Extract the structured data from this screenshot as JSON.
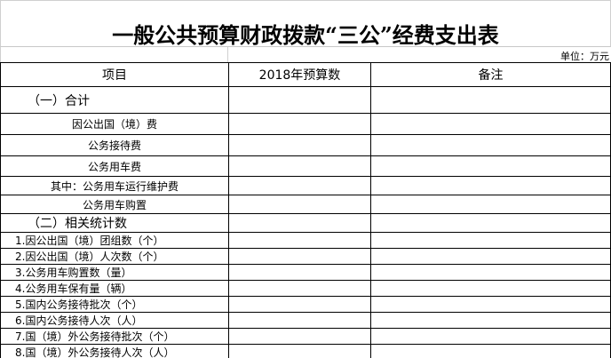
{
  "title": "一般公共预算财政拨款“三公”经费支出表",
  "unit": "单位：万元",
  "headers": [
    "项目",
    "2018年预算数",
    "备注"
  ],
  "rows": [
    {
      "label": "（一）合计",
      "budget": "",
      "note": ""
    },
    {
      "label": "因公出国（境）费",
      "budget": "",
      "note": ""
    },
    {
      "label": "公务接待费",
      "budget": "",
      "note": ""
    },
    {
      "label": "公务用车费",
      "budget": "",
      "note": ""
    },
    {
      "label": "其中：公务用车运行维护费",
      "budget": "",
      "note": ""
    },
    {
      "label": "公务用车购置",
      "budget": "",
      "note": ""
    },
    {
      "label": "（二）相关统计数",
      "budget": "",
      "note": ""
    },
    {
      "label": "1.因公出国（境）团组数（个）",
      "budget": "",
      "note": ""
    },
    {
      "label": "2.因公出国（境）人次数（个）",
      "budget": "",
      "note": ""
    },
    {
      "label": "3.公务用车购置数（量）",
      "budget": "",
      "note": ""
    },
    {
      "label": "4.公务用车保有量（辆）",
      "budget": "",
      "note": ""
    },
    {
      "label": "5.国内公务接待批次（个）",
      "budget": "",
      "note": ""
    },
    {
      "label": "6.国内公务接待人次（人）",
      "budget": "",
      "note": ""
    },
    {
      "label": "7.国（境）外公务接待批次（个）",
      "budget": "",
      "note": ""
    },
    {
      "label": "8.国（境）外公务接待人次（人）",
      "budget": "",
      "note": ""
    }
  ]
}
